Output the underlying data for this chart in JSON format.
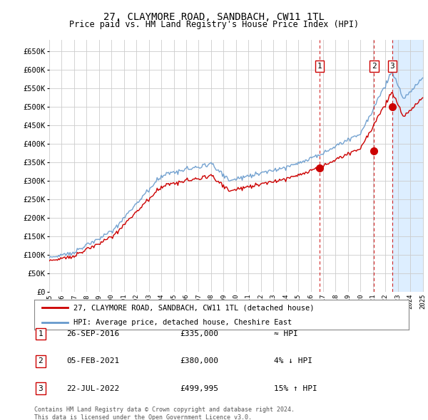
{
  "title": "27, CLAYMORE ROAD, SANDBACH, CW11 1TL",
  "subtitle": "Price paid vs. HM Land Registry's House Price Index (HPI)",
  "ylim": [
    0,
    680000
  ],
  "yticks": [
    0,
    50000,
    100000,
    150000,
    200000,
    250000,
    300000,
    350000,
    400000,
    450000,
    500000,
    550000,
    600000,
    650000
  ],
  "ytick_labels": [
    "£0",
    "£50K",
    "£100K",
    "£150K",
    "£200K",
    "£250K",
    "£300K",
    "£350K",
    "£400K",
    "£450K",
    "£500K",
    "£550K",
    "£600K",
    "£650K"
  ],
  "plot_bg_color": "#ffffff",
  "grid_color": "#cccccc",
  "hpi_color": "#6699cc",
  "price_color": "#cc0000",
  "sale_marker_color": "#cc0000",
  "dashed_line_color": "#cc0000",
  "shade_color": "#ddeeff",
  "transactions": [
    {
      "id": 1,
      "date": "26-SEP-2016",
      "price": 335000,
      "rel": "≈ HPI",
      "year": 2016.73
    },
    {
      "id": 2,
      "date": "05-FEB-2021",
      "price": 380000,
      "rel": "4% ↓ HPI",
      "year": 2021.09
    },
    {
      "id": 3,
      "date": "22-JUL-2022",
      "price": 499995,
      "rel": "15% ↑ HPI",
      "year": 2022.55
    }
  ],
  "footer": "Contains HM Land Registry data © Crown copyright and database right 2024.\nThis data is licensed under the Open Government Licence v3.0.",
  "legend_line1": "27, CLAYMORE ROAD, SANDBACH, CW11 1TL (detached house)",
  "legend_line2": "HPI: Average price, detached house, Cheshire East",
  "x_start_year": 1995,
  "x_end_year": 2025
}
